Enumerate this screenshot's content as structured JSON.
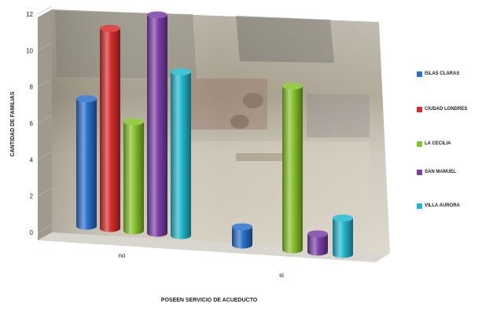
{
  "chart_data": {
    "type": "bar",
    "style": "3d-cylinder",
    "categories": [
      "no",
      "si"
    ],
    "series": [
      {
        "name": "ISLAS CLARAS",
        "color": "#2a6fcc",
        "values": [
          7,
          1
        ]
      },
      {
        "name": "CIUDAD LONDRES",
        "color": "#d42c2c",
        "values": [
          11,
          0
        ]
      },
      {
        "name": "LA CECILIA",
        "color": "#86c22a",
        "values": [
          6,
          9
        ]
      },
      {
        "name": "SAN MANUEL",
        "color": "#7a3fa8",
        "values": [
          12,
          1
        ]
      },
      {
        "name": "VILLA AURORA",
        "color": "#23b8cc",
        "values": [
          9,
          2
        ]
      }
    ],
    "ylabel": "CANTIDAD DE FAMILIAS",
    "xlabel": "POSEEN SERVICIO DE ACUEDUCTO",
    "ylim": [
      0,
      12
    ],
    "yticks": [
      "0",
      "2",
      "4",
      "6",
      "8",
      "10",
      "12"
    ],
    "legend_position": "right",
    "background": "photo"
  }
}
